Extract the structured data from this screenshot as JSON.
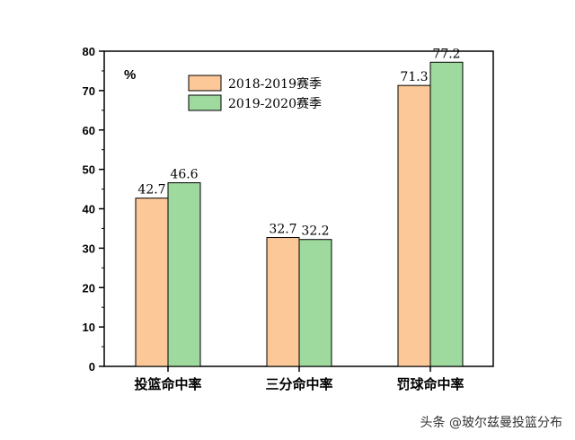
{
  "chart_data": {
    "type": "bar",
    "categories": [
      "投篮命中率",
      "三分命中率",
      "罚球命中率"
    ],
    "series": [
      {
        "name": "2018-2019赛季",
        "values": [
          42.7,
          32.7,
          71.3
        ],
        "color": "#FDC898",
        "label_text": [
          "42.7",
          "32.7",
          "71.3"
        ]
      },
      {
        "name": "2019-2020赛季",
        "values": [
          46.6,
          32.2,
          77.2
        ],
        "color": "#9ED99E",
        "label_text": [
          "46.6",
          "32.2",
          "77.2"
        ]
      }
    ],
    "ylabel": "%",
    "ylim": [
      0,
      80
    ],
    "yticks": [
      "0",
      "10",
      "20",
      "30",
      "40",
      "50",
      "60",
      "70",
      "80"
    ],
    "legend_position": "top-center",
    "grid": false
  },
  "watermark": "头条 @玻尔兹曼投篮分布"
}
